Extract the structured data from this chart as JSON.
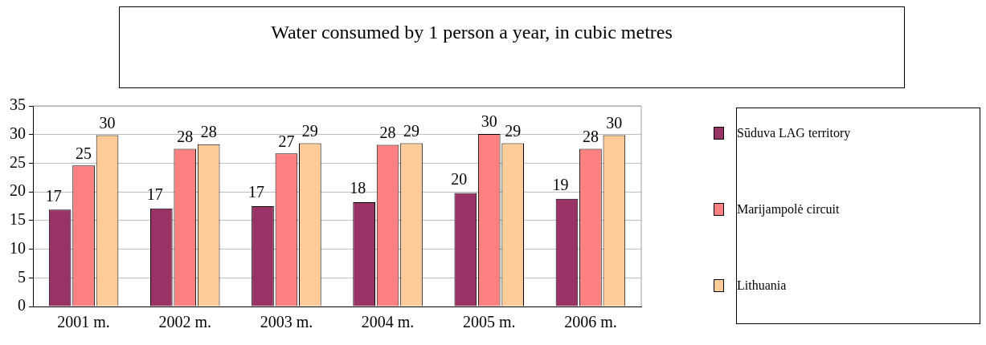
{
  "chart_data": {
    "type": "bar",
    "title": "Water consumed by 1 person a year, in cubic metres",
    "categories": [
      "2001 m.",
      "2002 m.",
      "2003 m.",
      "2004 m.",
      "2005 m.",
      "2006 m."
    ],
    "series": [
      {
        "name": "Sūduva LAG territory",
        "color": "#993366",
        "values": [
          16.9,
          17.1,
          17.5,
          18.2,
          19.8,
          18.8
        ],
        "value_labels": [
          "17",
          "17",
          "17",
          "18",
          "20",
          "19"
        ]
      },
      {
        "name": "Marijampolė circuit",
        "color": "#ff8080",
        "values": [
          24.6,
          27.5,
          26.7,
          28.2,
          30.1,
          27.5
        ],
        "value_labels": [
          "25",
          "28",
          "27",
          "28",
          "30",
          "28"
        ]
      },
      {
        "name": "Lithuania",
        "color": "#ffcc99",
        "values": [
          29.9,
          28.3,
          28.5,
          28.5,
          28.5,
          29.9
        ],
        "value_labels": [
          "30",
          "28",
          "29",
          "29",
          "29",
          "30"
        ]
      }
    ],
    "ylim": [
      0,
      35
    ],
    "yticks": [
      0,
      5,
      10,
      15,
      20,
      25,
      30,
      35
    ],
    "grid": "y",
    "legend": "right"
  }
}
